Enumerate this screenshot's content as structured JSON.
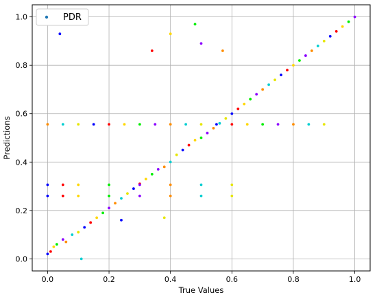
{
  "chart_data": {
    "type": "scatter",
    "title": "",
    "xlabel": "True Values",
    "ylabel": "Predictions",
    "xlim": [
      -0.05,
      1.05
    ],
    "ylim": [
      -0.05,
      1.05
    ],
    "xticks": [
      0.0,
      0.2,
      0.4,
      0.6,
      0.8,
      1.0
    ],
    "yticks": [
      0.0,
      0.2,
      0.4,
      0.6,
      0.8,
      1.0
    ],
    "xtick_labels": [
      "0.0",
      "0.2",
      "0.4",
      "0.6",
      "0.8",
      "1.0"
    ],
    "ytick_labels": [
      "0.0",
      "0.2",
      "0.4",
      "0.6",
      "0.8",
      "1.0"
    ],
    "grid": true,
    "legend": {
      "entries": [
        "PDR"
      ],
      "placement": "top-left"
    },
    "series_colors": [
      "#1f77b4",
      "#0000ff",
      "#ff0000",
      "#ffd700",
      "#00ee00",
      "#8b00ff",
      "#ff8c00",
      "#00ced1",
      "#e6e600"
    ],
    "series": [
      {
        "name": "PDR",
        "description_points": "approximate sample of the plotted points",
        "x": [
          0.0,
          0.01,
          0.02,
          0.03,
          0.05,
          0.06,
          0.08,
          0.1,
          0.12,
          0.14,
          0.16,
          0.18,
          0.2,
          0.22,
          0.24,
          0.26,
          0.28,
          0.3,
          0.32,
          0.34,
          0.36,
          0.38,
          0.4,
          0.42,
          0.44,
          0.46,
          0.48,
          0.5,
          0.52,
          0.54,
          0.56,
          0.58,
          0.6,
          0.62,
          0.64,
          0.66,
          0.68,
          0.7,
          0.72,
          0.74,
          0.76,
          0.78,
          0.8,
          0.82,
          0.84,
          0.86,
          0.88,
          0.9,
          0.92,
          0.94,
          0.96,
          0.98,
          1.0,
          0.0,
          0.05,
          0.1,
          0.15,
          0.2,
          0.25,
          0.3,
          0.35,
          0.4,
          0.45,
          0.5,
          0.55,
          0.6,
          0.65,
          0.7,
          0.75,
          0.8,
          0.85,
          0.9,
          0.0,
          0.05,
          0.1,
          0.2,
          0.3,
          0.4,
          0.5,
          0.6,
          0.0,
          0.05,
          0.1,
          0.2,
          0.3,
          0.4,
          0.5,
          0.6,
          0.04,
          0.34,
          0.4,
          0.48,
          0.5,
          0.57,
          0.11,
          0.38,
          0.24
        ],
        "y": [
          0.02,
          0.03,
          0.05,
          0.06,
          0.08,
          0.07,
          0.1,
          0.11,
          0.13,
          0.15,
          0.17,
          0.19,
          0.21,
          0.23,
          0.25,
          0.27,
          0.29,
          0.31,
          0.33,
          0.35,
          0.37,
          0.38,
          0.4,
          0.43,
          0.45,
          0.47,
          0.49,
          0.5,
          0.52,
          0.54,
          0.56,
          0.58,
          0.6,
          0.62,
          0.64,
          0.66,
          0.68,
          0.7,
          0.72,
          0.74,
          0.76,
          0.78,
          0.8,
          0.82,
          0.84,
          0.86,
          0.88,
          0.9,
          0.92,
          0.94,
          0.96,
          0.98,
          1.0,
          0.556,
          0.556,
          0.556,
          0.556,
          0.556,
          0.556,
          0.556,
          0.556,
          0.556,
          0.556,
          0.556,
          0.556,
          0.556,
          0.556,
          0.556,
          0.556,
          0.556,
          0.556,
          0.556,
          0.306,
          0.306,
          0.306,
          0.306,
          0.306,
          0.306,
          0.306,
          0.306,
          0.26,
          0.26,
          0.26,
          0.26,
          0.26,
          0.26,
          0.26,
          0.26,
          0.93,
          0.86,
          0.93,
          0.97,
          0.89,
          0.86,
          0.0,
          0.17,
          0.16
        ]
      }
    ]
  }
}
